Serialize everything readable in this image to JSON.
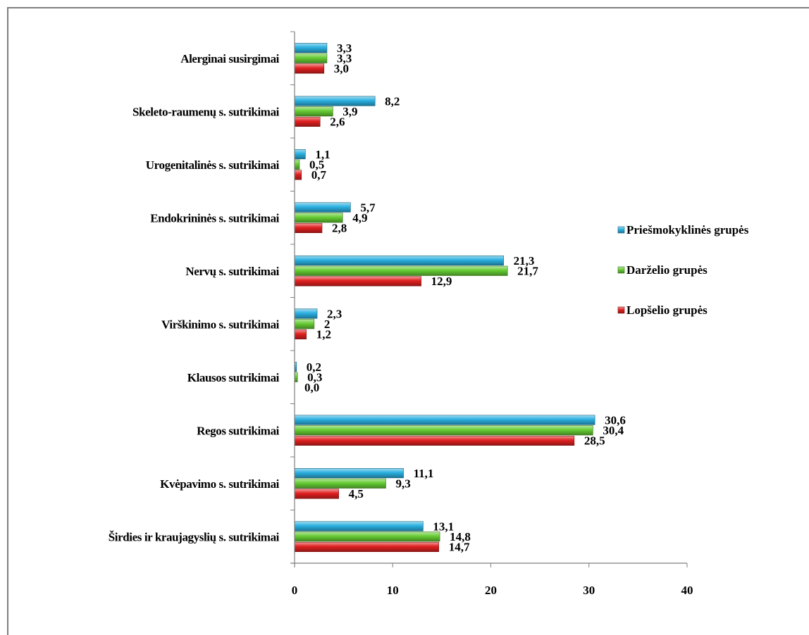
{
  "chart_data": {
    "type": "bar",
    "orientation": "horizontal",
    "categories": [
      "Alerginai susirgimai",
      "Skeleto-raumenų s. sutrikimai",
      "Urogenitalinės s. sutrikimai",
      "Endokrininės s. sutrikimai",
      "Nervų s. sutrikimai",
      "Virškinimo s. sutrikimai",
      "Klausos sutrikimai",
      "Regos sutrikimai",
      "Kvėpavimo s. sutrikimai",
      "Širdies ir kraujagyslių s. sutrikimai"
    ],
    "series": [
      {
        "name": "Priešmokyklinės grupės",
        "color": "#2ab0e0",
        "values": [
          3.3,
          8.2,
          1.1,
          5.7,
          21.3,
          2.3,
          0.2,
          30.6,
          11.1,
          13.1
        ],
        "labels": [
          "3,3",
          "8,2",
          "1,1",
          "5,7",
          "21,3",
          "2,3",
          "0,2",
          "30,6",
          "11,1",
          "13,1"
        ]
      },
      {
        "name": "Darželio grupės",
        "color": "#66cc33",
        "values": [
          3.3,
          3.9,
          0.5,
          4.9,
          21.7,
          2,
          0.3,
          30.4,
          9.3,
          14.8
        ],
        "labels": [
          "3,3",
          "3,9",
          "0,5",
          "4,9",
          "21,7",
          "2",
          "0,3",
          "30,4",
          "9,3",
          "14,8"
        ]
      },
      {
        "name": "Lopšelio grupės",
        "color": "#e02020",
        "values": [
          3.0,
          2.6,
          0.7,
          2.8,
          12.9,
          1.2,
          0.0,
          28.5,
          4.5,
          14.7
        ],
        "labels": [
          "3,0",
          "2,6",
          "0,7",
          "2,8",
          "12,9",
          "1,2",
          "0,0",
          "28,5",
          "4,5",
          "14,7"
        ]
      }
    ],
    "xlim": [
      0,
      40
    ],
    "xticks": [
      "0",
      "10",
      "20",
      "30",
      "40"
    ],
    "legend_position": "right",
    "grid": false
  }
}
